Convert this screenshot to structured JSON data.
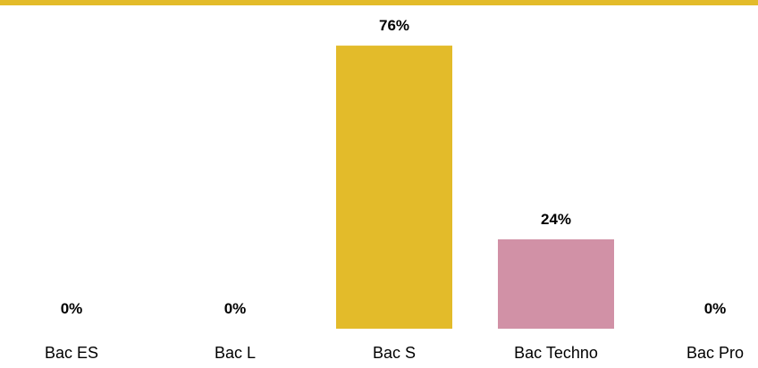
{
  "chart_data": {
    "type": "bar",
    "categories": [
      "Bac ES",
      "Bac L",
      "Bac S",
      "Bac Techno",
      "Bac Pro"
    ],
    "values": [
      0,
      0,
      76,
      24,
      0
    ],
    "data_labels": [
      "0%",
      "0%",
      "76%",
      "24%",
      "0%"
    ],
    "bar_colors": [
      "#E3BB2A",
      "#E3BB2A",
      "#E3BB2A",
      "#D191A6",
      "#E3BB2A"
    ],
    "top_strip_color": "#E3BB2A",
    "title": "",
    "xlabel": "",
    "ylabel": "",
    "ylim": [
      0,
      80
    ],
    "grid": false,
    "legend": "none"
  }
}
